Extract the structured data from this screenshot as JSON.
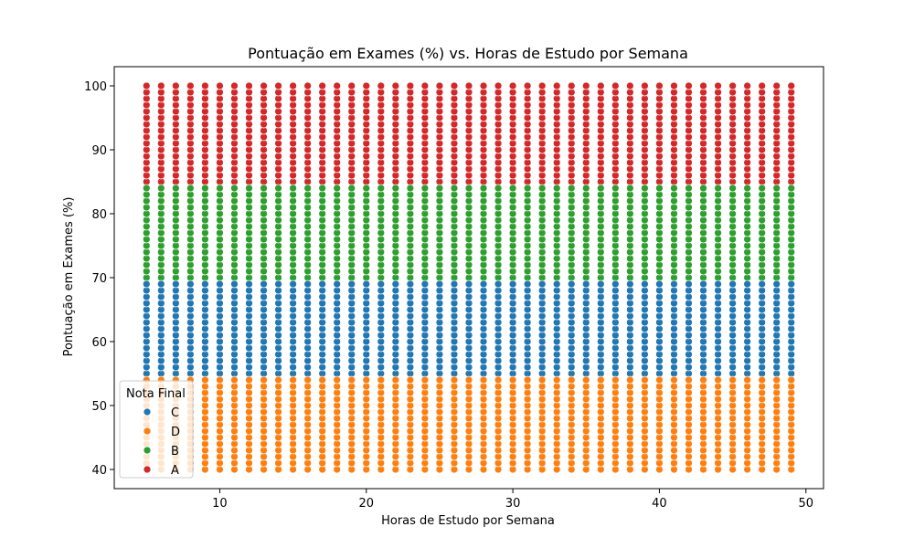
{
  "chart_data": {
    "type": "scatter",
    "title": "Pontuação em Exames (%) vs. Horas de Estudo por Semana",
    "xlabel": "Horas de Estudo por Semana",
    "ylabel": "Pontuação em Exames (%)",
    "xlim": [
      2.8,
      51.2
    ],
    "ylim": [
      37,
      103
    ],
    "xticks": [
      10,
      20,
      30,
      40,
      50
    ],
    "yticks": [
      40,
      50,
      60,
      70,
      80,
      90,
      100
    ],
    "x_range": [
      5,
      49
    ],
    "x_step": 1,
    "y_step": 1,
    "legend": {
      "title": "Nota Final",
      "location": "lower-left",
      "entries": [
        "C",
        "D",
        "B",
        "A"
      ]
    },
    "series": [
      {
        "name": "C",
        "color": "#1f77b4",
        "y_range": [
          55,
          69
        ]
      },
      {
        "name": "D",
        "color": "#ff7f0e",
        "y_range": [
          40,
          54
        ]
      },
      {
        "name": "B",
        "color": "#2ca02c",
        "y_range": [
          70,
          84
        ]
      },
      {
        "name": "A",
        "color": "#d62728",
        "y_range": [
          85,
          100
        ]
      }
    ]
  }
}
